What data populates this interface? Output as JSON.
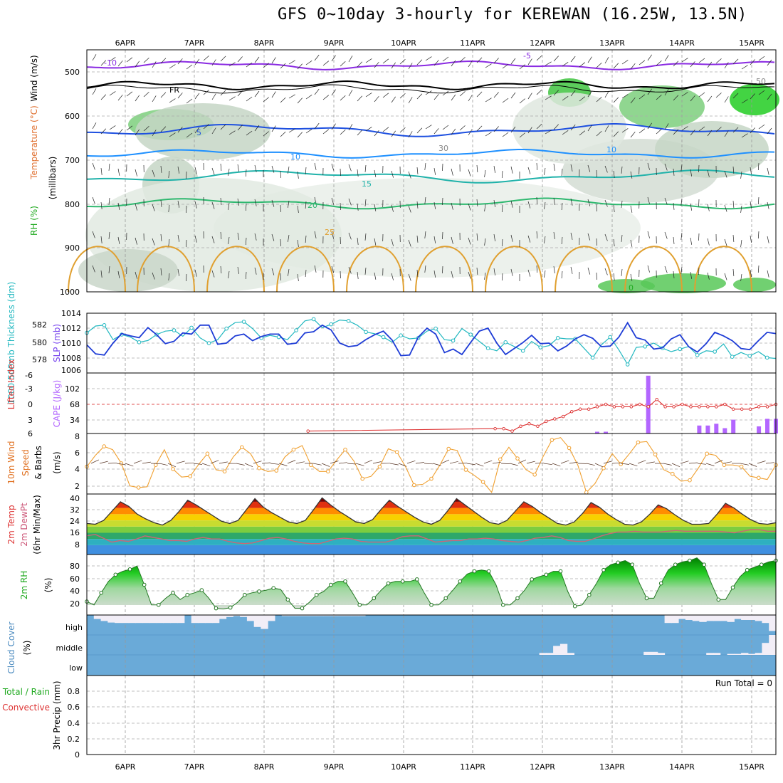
{
  "title": "GFS 0~10day 3-hourly for KEREWAN (16.25W, 13.5N)",
  "chart_data": [
    {
      "type": "heatmap",
      "panel": "upper_air_cross_section",
      "xlabels": [
        "6APR",
        "7APR",
        "8APR",
        "9APR",
        "10APR",
        "11APR",
        "12APR",
        "13APR",
        "14APR",
        "15APR"
      ],
      "yticks": [
        "500",
        "600",
        "700",
        "800",
        "900",
        "1000"
      ],
      "yunit": "(millibars)",
      "legend": {
        "rh": "RH (%)",
        "temperature": "Temperature (°C)",
        "wind": "Wind (m/s)"
      },
      "contour_labels": [
        "-10",
        "-5",
        "FR",
        "5",
        "10",
        "15",
        "20",
        "25",
        "10",
        "30",
        "50",
        "0"
      ],
      "colors": {
        "temp_cold": "#8a2be2",
        "freezing": "#000000",
        "temp_5": "#1e50e0",
        "temp_10": "#1e90ff",
        "temp_15": "#20b2aa",
        "temp_20": "#2eb86f",
        "temp_25": "#e0a030",
        "rh_high": "#22cc22",
        "rh_mid": "#90a890"
      }
    },
    {
      "type": "line",
      "panel": "slp_thickness",
      "labels": {
        "thickness": "1000-500mb Thickness (dm)",
        "slp": "SLP (mb)"
      },
      "left_ticks": [
        "582",
        "580",
        "578"
      ],
      "right_ticks": [
        "1014",
        "1012",
        "1010",
        "1008",
        "1006"
      ],
      "series": [
        {
          "name": "SLP (mb)",
          "axis": "right",
          "color": "#1e3cd6",
          "values": [
            1008.7,
            1007.2,
            1007.0,
            1009.0,
            1010.6,
            1010.2,
            1009.9,
            1011.6,
            1010.4,
            1008.9,
            1009.3,
            1010.7,
            1010.5,
            1012.0,
            1012.0,
            1008.8,
            1009.0,
            1010.2,
            1010.5,
            1009.4,
            1010.1,
            1010.5,
            1010.5,
            1008.8,
            1009.0,
            1010.7,
            1010.9,
            1012.0,
            1011.2,
            1009.0,
            1008.4,
            1008.6,
            1009.6,
            1010.4,
            1011.0,
            1009.5,
            1006.9,
            1007.0,
            1010.0,
            1011.5,
            1010.5,
            1007.4,
            1008.0,
            1007.1,
            1009.1,
            1011.0,
            1011.5,
            1009.0,
            1007.1,
            1008.1,
            1009.1,
            1010.3,
            1008.9,
            1009.0,
            1007.7,
            1008.5,
            1009.7,
            1010.4,
            1009.8,
            1008.4,
            1008.5,
            1010.0,
            1012.4,
            1009.9,
            1009.5,
            1008.0,
            1008.2,
            1009.7,
            1010.4,
            1008.4,
            1007.5,
            1008.9,
            1010.8,
            1010.2,
            1009.4,
            1008.1,
            1007.9,
            1009.4,
            1010.8,
            1010.6
          ]
        },
        {
          "name": "1000-500mb Thickness (dm)",
          "axis": "left",
          "color": "#22b8c0",
          "values": [
            581.2,
            582.0,
            582.1,
            580.4,
            581.0,
            580.7,
            580.1,
            580.3,
            581.0,
            581.4,
            581.5,
            580.8,
            581.8,
            580.6,
            580.0,
            580.4,
            581.7,
            582.4,
            582.5,
            581.7,
            580.6,
            580.9,
            580.7,
            580.4,
            581.5,
            582.6,
            582.8,
            581.8,
            582.2,
            582.7,
            582.6,
            582.1,
            581.3,
            581.1,
            580.7,
            580.1,
            580.9,
            580.5,
            580.6,
            581.4,
            581.7,
            580.4,
            580.3,
            581.7,
            581.0,
            580.2,
            579.4,
            579.1,
            580.1,
            579.6,
            579.1,
            580.2,
            579.5,
            579.7,
            580.6,
            580.5,
            580.5,
            579.4,
            578.3,
            579.8,
            580.7,
            579.2,
            577.5,
            579.5,
            579.6,
            580.0,
            579.4,
            579.0,
            579.3,
            579.6,
            578.6,
            579.1,
            579.0,
            579.9,
            578.4,
            578.9,
            578.5,
            579.0,
            578.3,
            578.2
          ]
        }
      ]
    },
    {
      "type": "bar",
      "panel": "cape_lifted_index",
      "labels": {
        "cape": "CAPE (J/kg)",
        "li": "Lifted Index"
      },
      "left_ticks": [
        "-6",
        "-3",
        "0",
        "3",
        "6"
      ],
      "right_ticks": [
        "102",
        "68",
        "34"
      ],
      "series": [
        {
          "name": "CAPE (J/kg)",
          "color": "#b366ff",
          "values": [
            0,
            0,
            0,
            0,
            0,
            0,
            0,
            0,
            0,
            0,
            0,
            0,
            0,
            0,
            0,
            0,
            0,
            0,
            0,
            0,
            0,
            0,
            0,
            0,
            0,
            0,
            0,
            0,
            0,
            0,
            0,
            0,
            0,
            0,
            0,
            0,
            0,
            0,
            0,
            0,
            0,
            0,
            0,
            0,
            0,
            0,
            0,
            0,
            0,
            0,
            0,
            0,
            0,
            0,
            0,
            0,
            0,
            0,
            0,
            0,
            4,
            4,
            0,
            0,
            0,
            0,
            130,
            0,
            0,
            0,
            0,
            0,
            18,
            18,
            22,
            12,
            31,
            0,
            0,
            16,
            33,
            33
          ]
        },
        {
          "name": "Lifted Index",
          "color": "#dd3333",
          "values": [
            null,
            null,
            null,
            null,
            null,
            null,
            null,
            null,
            null,
            null,
            null,
            null,
            null,
            null,
            null,
            null,
            null,
            null,
            null,
            null,
            null,
            null,
            null,
            null,
            null,
            null,
            5.5,
            null,
            null,
            null,
            null,
            null,
            null,
            null,
            null,
            null,
            null,
            null,
            null,
            null,
            null,
            null,
            null,
            null,
            null,
            null,
            null,
            null,
            5,
            5,
            5.5,
            4.5,
            4,
            4.5,
            3.5,
            3,
            2.5,
            1.5,
            1,
            1,
            0.5,
            0,
            0.5,
            0.5,
            0.5,
            0,
            0.5,
            -1,
            0.5,
            0.5,
            0,
            0.5,
            0.5,
            0.5,
            0.5,
            0,
            1,
            1,
            1,
            0.5,
            0.5,
            0
          ]
        }
      ]
    },
    {
      "type": "line",
      "panel": "10m_wind",
      "labels": {
        "title": "10m Wind",
        "speed": "Speed",
        "barbs": "& Barbs",
        "unit": "(m/s)"
      },
      "yticks": [
        "8",
        "6",
        "4",
        "2"
      ],
      "series": [
        {
          "name": "Speed",
          "color": "#f0a030",
          "values": [
            4.4,
            5.8,
            6.9,
            6.5,
            4.8,
            2.0,
            1.8,
            1.9,
            4.6,
            6.5,
            4.1,
            3.1,
            3.2,
            4.7,
            6.0,
            4.0,
            3.8,
            5.6,
            6.8,
            6.0,
            4.2,
            3.8,
            3.9,
            5.6,
            6.5,
            7.0,
            4.6,
            3.8,
            3.8,
            5.2,
            6.5,
            5.1,
            2.9,
            3.2,
            4.4,
            6.6,
            6.2,
            4.4,
            2.1,
            2.2,
            2.9,
            4.6,
            6.6,
            6.4,
            4.0,
            3.3,
            2.5,
            1.2,
            5.3,
            6.8,
            5.4,
            4.0,
            3.4,
            5.7,
            7.7,
            8.0,
            6.7,
            4.6,
            1.2,
            2.3,
            4.2,
            6.0,
            4.7,
            6.0,
            7.4,
            7.5,
            5.9,
            4.0,
            3.5,
            2.6,
            2.7,
            4.2,
            6.0,
            5.8,
            4.6,
            4.6,
            4.4,
            3.2,
            3.0,
            2.8,
            4.6
          ]
        }
      ]
    },
    {
      "type": "area",
      "panel": "2m_temp",
      "labels": {
        "temp": "2m Temp",
        "dewpt": "2m DewPt",
        "minmax": "(6hr Min/Max)"
      },
      "yticks": [
        "40",
        "32",
        "24",
        "16",
        "8"
      ],
      "series": [
        {
          "name": "2m Temp",
          "color": "#333333",
          "values": [
            22.0,
            21.5,
            24.0,
            30.0,
            36.0,
            33.0,
            28.0,
            25.0,
            22.5,
            21.0,
            24.0,
            30.0,
            37.0,
            34.0,
            30.5,
            27.0,
            23.5,
            22.0,
            24.0,
            31.0,
            38.0,
            32.5,
            29.0,
            26.0,
            23.0,
            22.0,
            24.0,
            31.0,
            38.5,
            34.0,
            30.0,
            26.5,
            23.0,
            22.0,
            24.5,
            31.0,
            37.0,
            33.0,
            29.5,
            26.0,
            23.0,
            21.5,
            24.0,
            30.5,
            38.0,
            34.0,
            30.0,
            26.0,
            22.5,
            21.5,
            24.0,
            30.0,
            36.0,
            33.0,
            29.0,
            25.5,
            22.0,
            21.0,
            23.0,
            28.5,
            35.5,
            32.5,
            28.0,
            24.5,
            21.5,
            21.0,
            23.0,
            28.0,
            34.0,
            31.5,
            27.5,
            24.0,
            21.5,
            21.5,
            22.0,
            28.0,
            35.0,
            32.0,
            28.0,
            24.5,
            22.0,
            21.5,
            22.5
          ]
        },
        {
          "name": "2m DewPt",
          "color": "#cc6677",
          "values": [
            14.0,
            15.0,
            12.5,
            10.0,
            11.0,
            10.5,
            12.0,
            14.0,
            13.0,
            12.0,
            11.0,
            11.0,
            10.5,
            12.0,
            13.0,
            12.0,
            12.0,
            10.5,
            9.5,
            9.0,
            9.5,
            11.0,
            12.5,
            13.0,
            12.0,
            10.5,
            9.5,
            9.0,
            9.0,
            10.5,
            12.0,
            12.5,
            12.0,
            10.5,
            10.0,
            10.0,
            10.0,
            11.5,
            13.5,
            14.0,
            14.0,
            12.0,
            10.0,
            10.5,
            11.0,
            11.0,
            12.0,
            12.0,
            12.5,
            12.0,
            11.0,
            10.5,
            10.0,
            11.0,
            12.5,
            13.0,
            14.0,
            13.0,
            11.0,
            10.5,
            10.5,
            12.0,
            14.0,
            15.5,
            16.5,
            16.5,
            17.0,
            16.5,
            16.5,
            16.5,
            17.0,
            17.5,
            17.0,
            17.0,
            17.0,
            17.0,
            17.0,
            16.5,
            16.0,
            17.0,
            18.0,
            18.0,
            17.0,
            17.0
          ]
        }
      ]
    },
    {
      "type": "area",
      "panel": "2m_rh",
      "labels": {
        "title": "2m RH",
        "unit": "(%)"
      },
      "yticks": [
        "80",
        "60",
        "40",
        "20"
      ],
      "series": [
        {
          "name": "2m RH",
          "color": "#22cc22",
          "values": [
            25,
            20,
            38,
            55,
            65,
            70,
            73,
            78,
            50,
            20,
            20,
            30,
            38,
            28,
            35,
            38,
            42,
            30,
            15,
            14,
            16,
            24,
            35,
            38,
            40,
            42,
            45,
            43,
            28,
            15,
            15,
            24,
            35,
            40,
            50,
            55,
            55,
            38,
            20,
            20,
            30,
            42,
            52,
            55,
            55,
            55,
            58,
            38,
            20,
            20,
            30,
            42,
            55,
            66,
            70,
            72,
            70,
            50,
            20,
            20,
            30,
            42,
            58,
            62,
            65,
            70,
            70,
            40,
            18,
            20,
            35,
            52,
            72,
            80,
            83,
            86,
            80,
            52,
            30,
            30,
            52,
            72,
            80,
            84,
            86,
            90,
            80,
            52,
            28,
            28,
            46,
            62,
            72,
            76,
            80,
            84,
            86
          ]
        }
      ]
    },
    {
      "type": "bar",
      "panel": "cloud_cover",
      "labels": {
        "title": "Cloud Cover",
        "unit": "(%)",
        "high": "high",
        "middle": "middle",
        "low": "low"
      },
      "series": [
        {
          "name": "high",
          "values": [
            0,
            20,
            30,
            38,
            40,
            40,
            40,
            40,
            40,
            40,
            40,
            40,
            40,
            40,
            0,
            40,
            40,
            40,
            40,
            20,
            10,
            5,
            10,
            30,
            60,
            70,
            30,
            0,
            5,
            5,
            5,
            5,
            5,
            5,
            5,
            5,
            5,
            5,
            5,
            5,
            0,
            0,
            0,
            0,
            0,
            0,
            0,
            0,
            0,
            0,
            0,
            0,
            0,
            0,
            0,
            0,
            0,
            0,
            0,
            0,
            0,
            0,
            0,
            0,
            0,
            0,
            0,
            0,
            0,
            0,
            0,
            0,
            0,
            0,
            0,
            0,
            0,
            0,
            0,
            0,
            0,
            0,
            0,
            40,
            40,
            20,
            25,
            30,
            35,
            30,
            30,
            30,
            35,
            20,
            25,
            25,
            30,
            40,
            80
          ]
        },
        {
          "name": "middle",
          "values": [
            0,
            0,
            0,
            0,
            0,
            0,
            0,
            0,
            0,
            0,
            0,
            0,
            0,
            0,
            0,
            0,
            0,
            0,
            0,
            0,
            0,
            0,
            0,
            0,
            0,
            0,
            0,
            0,
            0,
            0,
            0,
            0,
            0,
            0,
            0,
            0,
            0,
            0,
            0,
            0,
            0,
            0,
            0,
            0,
            0,
            0,
            0,
            0,
            0,
            0,
            0,
            0,
            0,
            0,
            0,
            0,
            0,
            0,
            0,
            0,
            0,
            0,
            0,
            0,
            0,
            10,
            10,
            45,
            55,
            10,
            0,
            0,
            0,
            0,
            0,
            0,
            0,
            0,
            0,
            0,
            15,
            15,
            10,
            0,
            0,
            0,
            0,
            0,
            0,
            10,
            10,
            0,
            5,
            5,
            10,
            5,
            10,
            60,
            100
          ]
        }
      ]
    },
    {
      "type": "bar",
      "panel": "precip",
      "labels": {
        "title": "3hr Precip (mm)",
        "total_rain": "Total / Rain",
        "convective": "Convective",
        "run_total": "Run Total = 0"
      },
      "yticks": [
        "0.8",
        "0.6",
        "0.4",
        "0.2",
        "0"
      ],
      "series": []
    }
  ]
}
